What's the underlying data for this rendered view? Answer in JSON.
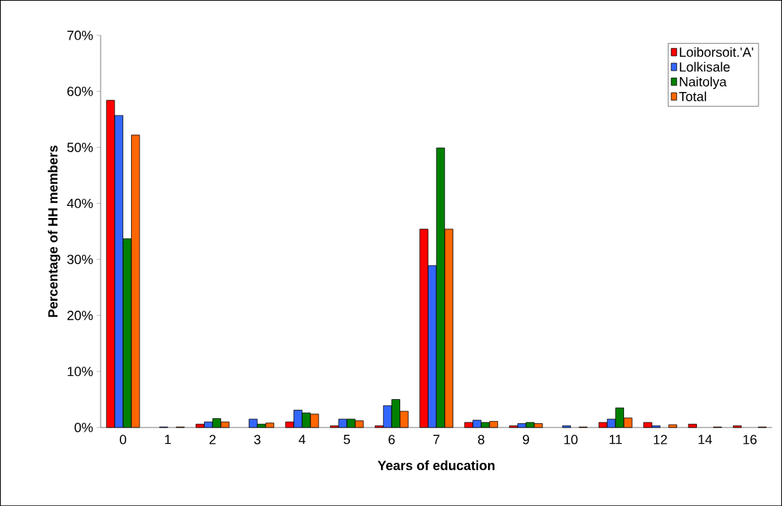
{
  "chart_data": {
    "type": "bar",
    "xlabel": "Years of education",
    "ylabel": "Percentage of HH members",
    "categories": [
      "0",
      "1",
      "2",
      "3",
      "4",
      "5",
      "6",
      "7",
      "8",
      "9",
      "10",
      "11",
      "12",
      "14",
      "16"
    ],
    "series": [
      {
        "name": "Loiborsoit.'A'",
        "color": "#ff0000",
        "values": [
          58.4,
          null,
          0.6,
          null,
          1.0,
          0.3,
          0.3,
          35.4,
          0.9,
          0.3,
          null,
          0.9,
          0.9,
          0.6,
          0.3
        ]
      },
      {
        "name": "Lolkisale",
        "color": "#3366ff",
        "values": [
          55.7,
          0.1,
          1.0,
          1.5,
          3.1,
          1.5,
          3.9,
          28.9,
          1.3,
          0.7,
          0.3,
          1.5,
          0.3,
          null,
          null
        ]
      },
      {
        "name": "Naitolya",
        "color": "#008000",
        "values": [
          33.7,
          null,
          1.6,
          0.6,
          2.6,
          1.5,
          5.0,
          49.9,
          0.9,
          0.9,
          null,
          3.5,
          null,
          null,
          null
        ]
      },
      {
        "name": "Total",
        "color": "#ff6600",
        "values": [
          52.2,
          0.1,
          1.0,
          0.8,
          2.4,
          1.2,
          2.9,
          35.4,
          1.1,
          0.7,
          0.1,
          1.7,
          0.5,
          0.1,
          0.1
        ]
      }
    ],
    "ylim": [
      0,
      70
    ],
    "yticks": [
      {
        "value": 0,
        "label": "0%"
      },
      {
        "value": 10,
        "label": "10%"
      },
      {
        "value": 20,
        "label": "20%"
      },
      {
        "value": 30,
        "label": "30%"
      },
      {
        "value": 40,
        "label": "40%"
      },
      {
        "value": 50,
        "label": "50%"
      },
      {
        "value": 60,
        "label": "60%"
      },
      {
        "value": 70,
        "label": "70%"
      }
    ],
    "legend": "top right",
    "grid": false
  }
}
